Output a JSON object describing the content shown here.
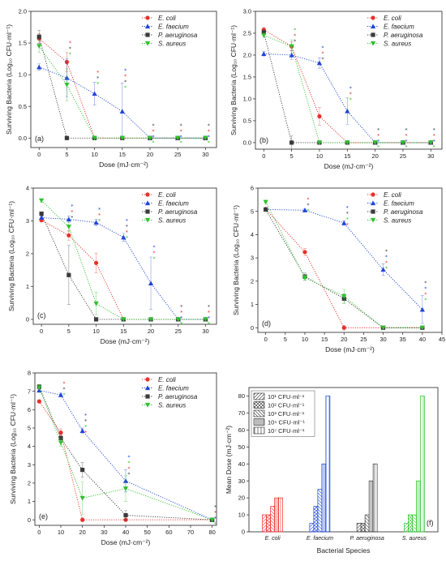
{
  "colors": {
    "E. coli": "#e8302a",
    "E. faecium": "#2045d8",
    "P. aeruginosa": "#3a3a3a",
    "S. aureus": "#2ec22e"
  },
  "markers": {
    "E. coli": "circle",
    "E. faecium": "triangle-up",
    "P. aeruginosa": "square",
    "S. aureus": "triangle-down"
  },
  "chart_data": [
    {
      "type": "line",
      "panel_label": "(a)",
      "xlabel": "Dose (mJ·cm⁻²)",
      "ylabel": "Surviving Bacteria (Log₁₀ CFU·ml⁻¹)",
      "xlim": [
        -1.5,
        32
      ],
      "ylim": [
        -0.15,
        2.0
      ],
      "xticks": [
        "0",
        "5",
        "10",
        "15",
        "20",
        "25",
        "30"
      ],
      "yticks": [
        "0.0",
        "0.5",
        "1.0",
        "1.5",
        "2.0"
      ],
      "legend_position": "top-right",
      "x": [
        0,
        5,
        10,
        15,
        20,
        25,
        30
      ],
      "series": [
        {
          "name": "E. coli",
          "values": [
            1.57,
            1.2,
            0,
            0,
            0,
            0,
            0
          ],
          "errors": [
            0.08,
            0.15,
            0,
            0,
            0,
            0,
            0
          ]
        },
        {
          "name": "E. faecium",
          "values": [
            1.12,
            0.95,
            0.7,
            0.42,
            0,
            0,
            0
          ],
          "errors": [
            0.05,
            0.3,
            0.18,
            0.45,
            0,
            0,
            0
          ]
        },
        {
          "name": "P. aeruginosa",
          "values": [
            1.6,
            0,
            0,
            0,
            0,
            0,
            0
          ],
          "errors": [
            0.1,
            0,
            0,
            0,
            0,
            0,
            0
          ]
        },
        {
          "name": "S. aureus",
          "values": [
            1.45,
            0.84,
            0,
            0,
            0,
            0,
            0
          ],
          "errors": [
            0.1,
            0.25,
            0,
            0,
            0,
            0,
            0
          ]
        }
      ],
      "significance_marks": [
        {
          "x": 5,
          "series": [
            "E. coli",
            "P. aeruginosa",
            "S. aureus"
          ]
        },
        {
          "x": 10,
          "series": [
            "E. coli",
            "P. aeruginosa",
            "S. aureus"
          ]
        },
        {
          "x": 15,
          "series": [
            "E. faecium",
            "E. coli",
            "P. aeruginosa",
            "S. aureus"
          ]
        },
        {
          "x": 20,
          "series": [
            "P. aeruginosa",
            "E. coli",
            "E. faecium",
            "S. aureus"
          ]
        },
        {
          "x": 25,
          "series": [
            "P. aeruginosa",
            "E. coli",
            "E. faecium",
            "S. aureus"
          ]
        },
        {
          "x": 30,
          "series": [
            "P. aeruginosa",
            "E. coli",
            "E. faecium",
            "S. aureus"
          ]
        }
      ]
    },
    {
      "type": "line",
      "panel_label": "(b)",
      "xlabel": "Dose (mJ·cm⁻²)",
      "ylabel": "Surviving Bacteria (Log₁₀ CFU·ml⁻¹)",
      "xlim": [
        -1.5,
        32
      ],
      "ylim": [
        -0.15,
        3.0
      ],
      "xticks": [
        "0",
        "5",
        "10",
        "15",
        "20",
        "25",
        "30"
      ],
      "yticks": [
        "0.0",
        "0.5",
        "1.0",
        "1.5",
        "2.0",
        "2.5",
        "3.0"
      ],
      "legend_position": "top-right",
      "x": [
        0,
        5,
        10,
        15,
        20,
        25,
        30
      ],
      "series": [
        {
          "name": "E. coli",
          "values": [
            2.58,
            2.2,
            0.6,
            0,
            0,
            0,
            0
          ],
          "errors": [
            0.05,
            0.1,
            0.2,
            0,
            0,
            0,
            0
          ]
        },
        {
          "name": "E. faecium",
          "values": [
            2.03,
            2.0,
            1.82,
            0.72,
            0,
            0,
            0
          ],
          "errors": [
            0.05,
            0.1,
            0.12,
            0.3,
            0,
            0,
            0
          ]
        },
        {
          "name": "P. aeruginosa",
          "values": [
            2.52,
            0,
            0,
            0,
            0,
            0,
            0
          ],
          "errors": [
            0.05,
            0.15,
            0,
            0,
            0,
            0,
            0
          ]
        },
        {
          "name": "S. aureus",
          "values": [
            2.45,
            2.2,
            0,
            0,
            0,
            0,
            0
          ],
          "errors": [
            0.05,
            0.15,
            0,
            0,
            0,
            0,
            0
          ]
        }
      ],
      "significance_marks": [
        {
          "x": 5,
          "series": [
            "S. aureus",
            "E. coli",
            "P. aeruginosa"
          ]
        },
        {
          "x": 10,
          "series": [
            "E. faecium",
            "E. coli",
            "P. aeruginosa"
          ]
        },
        {
          "x": 15,
          "series": [
            "E. faecium",
            "E. coli",
            "S. aureus"
          ]
        },
        {
          "x": 20,
          "series": [
            "P. aeruginosa",
            "E. coli",
            "E. faecium",
            "S. aureus"
          ]
        },
        {
          "x": 25,
          "series": [
            "P. aeruginosa",
            "E. coli",
            "E. faecium",
            "S. aureus"
          ]
        },
        {
          "x": 30,
          "series": [
            "P. aeruginosa",
            "E. coli",
            "E. faecium",
            "S. aureus"
          ]
        }
      ]
    },
    {
      "type": "line",
      "panel_label": "(c)",
      "xlabel": "Dose (mJ·cm⁻²)",
      "ylabel": "Surviving Bacteria (Log₁₀ CFU·ml⁻¹)",
      "xlim": [
        -1.5,
        32
      ],
      "ylim": [
        -0.15,
        4.0
      ],
      "xticks": [
        "0",
        "5",
        "10",
        "15",
        "20",
        "25",
        "30"
      ],
      "yticks": [
        "0",
        "1",
        "2",
        "3",
        "4"
      ],
      "legend_position": "top-right",
      "x": [
        0,
        5,
        10,
        15,
        20,
        25,
        30
      ],
      "series": [
        {
          "name": "E. coli",
          "values": [
            3.02,
            2.56,
            1.72,
            0,
            0,
            0,
            0
          ],
          "errors": [
            0.05,
            0.15,
            0.3,
            0,
            0,
            0,
            0
          ]
        },
        {
          "name": "E. faecium",
          "values": [
            3.1,
            3.05,
            2.95,
            2.5,
            1.1,
            0,
            0
          ],
          "errors": [
            0.05,
            0.1,
            0.1,
            0.12,
            0.8,
            0,
            0
          ]
        },
        {
          "name": "P. aeruginosa",
          "values": [
            3.22,
            1.35,
            0,
            0,
            0,
            0,
            0
          ],
          "errors": [
            0.05,
            0.9,
            0,
            0,
            0,
            0,
            0
          ]
        },
        {
          "name": "S. aureus",
          "values": [
            3.62,
            2.82,
            0.48,
            0,
            0,
            0,
            0
          ],
          "errors": [
            0.05,
            0.15,
            0.35,
            0,
            0,
            0,
            0
          ]
        }
      ],
      "significance_marks": [
        {
          "x": 5,
          "series": [
            "E. faecium",
            "E. coli",
            "P. aeruginosa"
          ]
        },
        {
          "x": 10,
          "series": [
            "E. faecium",
            "E. coli",
            "S. aureus"
          ]
        },
        {
          "x": 15,
          "series": [
            "E. faecium",
            "P. aeruginosa",
            "E. coli",
            "S. aureus"
          ]
        },
        {
          "x": 20,
          "series": [
            "E. faecium",
            "E. coli",
            "S. aureus"
          ]
        },
        {
          "x": 25,
          "series": [
            "P. aeruginosa",
            "E. coli",
            "E. faecium",
            "S. aureus"
          ]
        },
        {
          "x": 30,
          "series": [
            "P. aeruginosa",
            "E. coli",
            "E. faecium",
            "S. aureus"
          ]
        }
      ]
    },
    {
      "type": "line",
      "panel_label": "(d)",
      "xlabel": "Dose (mJ·cm⁻²)",
      "ylabel": "Surviving Bacteria (Log₁₀ CFU·ml⁻¹)",
      "xlim": [
        -2,
        45
      ],
      "ylim": [
        -0.2,
        6.0
      ],
      "xticks": [
        "0",
        "5",
        "10",
        "15",
        "20",
        "25",
        "30",
        "35",
        "40",
        "45"
      ],
      "yticks": [
        "0",
        "1",
        "2",
        "3",
        "4",
        "5",
        "6"
      ],
      "legend_position": "top-right",
      "x": [
        0,
        10,
        20,
        30,
        40
      ],
      "series": [
        {
          "name": "E. coli",
          "values": [
            5.1,
            3.25,
            0,
            0,
            0
          ],
          "errors": [
            0.05,
            0.15,
            0.1,
            0,
            0
          ],
          "x": [
            0,
            10,
            20,
            30,
            40
          ]
        },
        {
          "name": "E. faecium",
          "values": [
            5.08,
            5.05,
            4.5,
            2.5,
            0.78
          ],
          "errors": [
            0.05,
            0.05,
            0.1,
            0.25,
            0.6
          ],
          "x": [
            0,
            10,
            20,
            30,
            40
          ]
        },
        {
          "name": "P. aeruginosa",
          "values": [
            5.08,
            2.2,
            1.25,
            0,
            0
          ],
          "errors": [
            0.05,
            0.15,
            0.2,
            0,
            0
          ],
          "x": [
            0,
            10,
            20,
            30,
            40
          ]
        },
        {
          "name": "S. aureus",
          "values": [
            5.4,
            2.15,
            1.35,
            0,
            0
          ],
          "errors": [
            0.05,
            0.1,
            0.3,
            0,
            0
          ],
          "x": [
            0,
            10,
            20,
            30,
            40
          ]
        }
      ],
      "significance_marks": [
        {
          "x": 10,
          "series": [
            "E. coli",
            "P. aeruginosa",
            "S. aureus"
          ]
        },
        {
          "x": 20,
          "series": [
            "E. faecium",
            "P. aeruginosa",
            "S. aureus",
            "E. coli"
          ]
        },
        {
          "x": 30,
          "series": [
            "P. aeruginosa",
            "E. faecium",
            "E. coli",
            "S. aureus"
          ]
        },
        {
          "x": 40,
          "series": [
            "P. aeruginosa",
            "E. faecium",
            "E. coli",
            "S. aureus"
          ]
        }
      ]
    },
    {
      "type": "line",
      "panel_label": "(e)",
      "xlabel": "Dose (mJ·cm⁻²)",
      "ylabel": "Surviving Bacteria (Log₁₀ CFU·ml⁻¹)",
      "xlim": [
        -2,
        82
      ],
      "ylim": [
        -0.3,
        8.0
      ],
      "xticks": [
        "0",
        "10",
        "20",
        "30",
        "40",
        "50",
        "60",
        "70",
        "80"
      ],
      "yticks": [
        "0",
        "1",
        "2",
        "3",
        "4",
        "5",
        "6",
        "7",
        "8"
      ],
      "legend_position": "top-right",
      "x": [
        0,
        10,
        20,
        40,
        80
      ],
      "series": [
        {
          "name": "E. coli",
          "values": [
            6.45,
            4.75,
            0,
            0,
            0
          ],
          "errors": [
            0.05,
            0.2,
            0.1,
            0,
            0
          ]
        },
        {
          "name": "E. faecium",
          "values": [
            7.05,
            6.8,
            4.85,
            2.12,
            0
          ],
          "errors": [
            0.1,
            0.1,
            0.15,
            0.6,
            0
          ]
        },
        {
          "name": "P. aeruginosa",
          "values": [
            7.25,
            4.45,
            2.72,
            0.25,
            0
          ],
          "errors": [
            0.1,
            0.15,
            0.4,
            0.25,
            0
          ]
        },
        {
          "name": "S. aureus",
          "values": [
            7.2,
            4.2,
            1.18,
            1.7,
            0
          ],
          "errors": [
            0.1,
            0.2,
            0.9,
            0.7,
            0
          ]
        }
      ],
      "significance_marks": [
        {
          "x": 10,
          "series": [
            "E. coli",
            "P. aeruginosa",
            "S. aureus"
          ]
        },
        {
          "x": 20,
          "series": [
            "E. faecium",
            "P. aeruginosa",
            "S. aureus",
            "E. coli"
          ]
        },
        {
          "x": 40,
          "series": [
            "E. faecium",
            "S. aureus",
            "E. coli",
            "P. aeruginosa"
          ]
        },
        {
          "x": 80,
          "series": [
            "P. aeruginosa",
            "E. coli",
            "E. faecium",
            "S. aureus"
          ]
        }
      ]
    },
    {
      "type": "bar",
      "panel_label": "(f)",
      "xlabel": "Bacterial Species",
      "ylabel": "Mean Dose (mJ·cm⁻²)",
      "ylim": [
        0,
        85
      ],
      "yticks": [
        "0",
        "10",
        "20",
        "30",
        "40",
        "50",
        "60",
        "70",
        "80"
      ],
      "legend_position": "top-left",
      "categories": [
        "E. coli",
        "E. faecium",
        "P. aeruginosa",
        "S. aureus"
      ],
      "category_colors": [
        "#e8302a",
        "#2045d8",
        "#3a3a3a",
        "#2ec22e"
      ],
      "series": [
        {
          "name": "10¹ CFU·ml⁻¹",
          "hatch": "diag-left",
          "values": [
            10,
            5,
            5,
            5
          ]
        },
        {
          "name": "10² CFU·ml⁻¹",
          "hatch": "crosshatch",
          "values": [
            10,
            15,
            5,
            10
          ]
        },
        {
          "name": "10³ CFU·ml⁻¹",
          "hatch": "diag-right",
          "values": [
            15,
            25,
            10,
            10
          ]
        },
        {
          "name": "10⁵ CFU·ml⁻¹",
          "hatch": "vertical-dense",
          "values": [
            20,
            40,
            30,
            30
          ]
        },
        {
          "name": "10⁷ CFU·ml⁻¹",
          "hatch": "vertical",
          "values": [
            20,
            80,
            40,
            80
          ]
        }
      ]
    }
  ]
}
